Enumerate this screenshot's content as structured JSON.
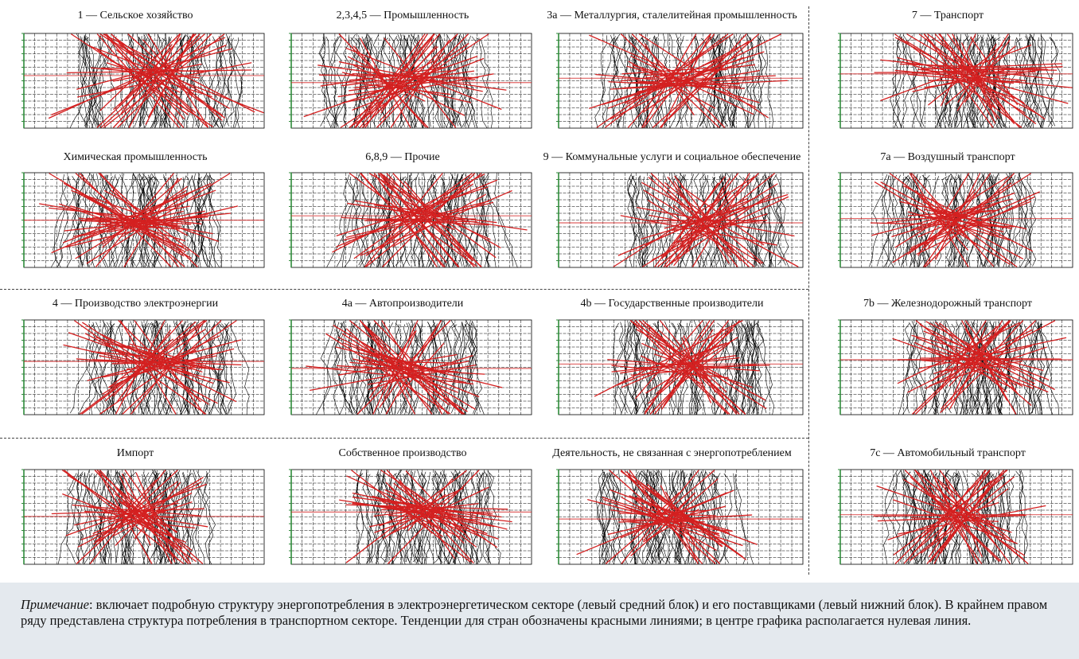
{
  "figure": {
    "note_label": "Примечание",
    "note_text": ": включает подробную структуру энергопотребления в электроэнергетическом секторе (левый средний блок) и его поставщиками (левый нижний блок). В крайнем правом ряду представлена структура потребления в транспортном секторе. Тенденции для стран обозначены красными линиями; в центре графика располагается нулевая линия."
  },
  "colors": {
    "country_lines": "#000000",
    "trend_lines": "#d42020",
    "axis": "#2e8b3a",
    "note_bg": "#e4e9ee"
  },
  "chart_data": [
    {
      "type": "line",
      "title": "1 — Сельское хозяйство"
    },
    {
      "type": "line",
      "title": "2,3,4,5 — Промышленность"
    },
    {
      "type": "line",
      "title": "3a — Металлургия, сталелитейная промышленность"
    },
    {
      "type": "line",
      "title": "7 — Транспорт"
    },
    {
      "type": "line",
      "title": "Химическая промышленность"
    },
    {
      "type": "line",
      "title": "6,8,9 — Прочие"
    },
    {
      "type": "line",
      "title": "9 — Коммунальные услуги и социальное обеспечение"
    },
    {
      "type": "line",
      "title": "7a — Воздушный транспорт"
    },
    {
      "type": "line",
      "title": "4 — Производство электроэнергии"
    },
    {
      "type": "line",
      "title": "4a — Автопроизводители"
    },
    {
      "type": "line",
      "title": "4b — Государственные производители"
    },
    {
      "type": "line",
      "title": "7b — Железнодорожный транспорт"
    },
    {
      "type": "line",
      "title": "Импорт"
    },
    {
      "type": "line",
      "title": "Собственное производство"
    },
    {
      "type": "line",
      "title": "Деятельность, не связанная с энергопотреблением"
    },
    {
      "type": "line",
      "title": "7c — Автомобильный транспорт"
    }
  ]
}
